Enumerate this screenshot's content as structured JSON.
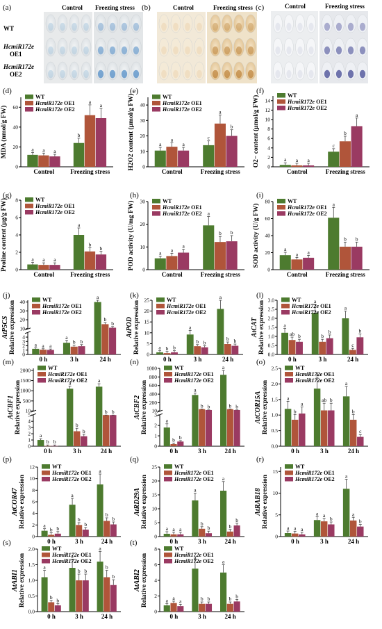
{
  "colors": {
    "wt": "#4d7b2f",
    "oe1": "#b0553a",
    "oe2": "#9a3a62",
    "axis": "#000000",
    "err": "#444444"
  },
  "legend": [
    "WT",
    "HcmiR172e OE1",
    "HcmiR172e OE2"
  ],
  "legend_ital": [
    "HcmiR172e"
  ],
  "photo_panels": [
    {
      "label": "(a)",
      "headers": [
        "Control",
        "Freezing stress"
      ],
      "rows": [
        "WT",
        "HcmiR172e",
        "OE1",
        "HcmiR172e",
        "OE2"
      ]
    },
    {
      "label": "(b)",
      "headers": [
        "Control",
        "Freezing stress"
      ]
    },
    {
      "label": "(c)",
      "headers": [
        "Control",
        "Freezing stress"
      ]
    }
  ],
  "chart_data": [
    {
      "label": "(d)",
      "type": "bar",
      "ylabel": "MDA (nmol/g FW)",
      "categories": [
        "Control",
        "Freezing stress"
      ],
      "ylim": [
        0,
        70
      ],
      "yticks": [
        "0",
        "20",
        "40",
        "60"
      ],
      "series": [
        {
          "name": "WT",
          "values": [
            12,
            24
          ]
        },
        {
          "name": "HcmiR172e OE1",
          "values": [
            11.5,
            52
          ]
        },
        {
          "name": "HcmiR172e OE2",
          "values": [
            10.5,
            49
          ]
        }
      ],
      "letters": [
        [
          "a",
          "a",
          "a"
        ],
        [
          "b",
          "a",
          "a"
        ]
      ]
    },
    {
      "label": "(e)",
      "type": "bar",
      "ylabel": "H2O2 content (μmol/g FW)",
      "categories": [
        "Control",
        "Freezing stress"
      ],
      "ylim": [
        0,
        45
      ],
      "yticks": [
        "0",
        "10",
        "20",
        "30",
        "40"
      ],
      "series": [
        {
          "name": "WT",
          "values": [
            10.5,
            14
          ]
        },
        {
          "name": "HcmiR172e OE1",
          "values": [
            13,
            28
          ]
        },
        {
          "name": "HcmiR172e OE2",
          "values": [
            10.5,
            20
          ]
        }
      ],
      "letters": [
        [
          "a",
          "a",
          "a"
        ],
        [
          "c",
          "a",
          "b"
        ]
      ]
    },
    {
      "label": "(f)",
      "type": "bar",
      "ylabel": "O2− content (μmol/g FW)",
      "categories": [
        "Control",
        "Freezing stress"
      ],
      "ylim": [
        0,
        15
      ],
      "yticks": [
        "0",
        "2",
        "4",
        "6",
        "8",
        "10",
        "12",
        "14"
      ],
      "series": [
        {
          "name": "WT",
          "values": [
            0.4,
            3.2
          ]
        },
        {
          "name": "HcmiR172e OE1",
          "values": [
            0.3,
            5.4
          ]
        },
        {
          "name": "HcmiR172e OE2",
          "values": [
            0.3,
            8.6
          ]
        }
      ],
      "letters": [
        [
          "a",
          "a",
          "a"
        ],
        [
          "c",
          "b",
          "a"
        ]
      ]
    },
    {
      "label": "(g)",
      "type": "bar",
      "ylabel": "Proline content (μg/g FW)",
      "categories": [
        "Control",
        "Freezing stress"
      ],
      "ylim": [
        0,
        8
      ],
      "yticks": [
        "0",
        "2",
        "4",
        "6",
        "8"
      ],
      "series": [
        {
          "name": "WT",
          "values": [
            0.6,
            4
          ]
        },
        {
          "name": "HcmiR172e OE1",
          "values": [
            0.55,
            2.1
          ]
        },
        {
          "name": "HcmiR172e OE2",
          "values": [
            0.55,
            1.75
          ]
        }
      ],
      "letters": [
        [
          "a",
          "a",
          "a"
        ],
        [
          "a",
          "b",
          "b"
        ]
      ]
    },
    {
      "label": "(h)",
      "type": "bar",
      "ylabel": "POD activity (U/mg FW)",
      "categories": [
        "Control",
        "Freezing stress"
      ],
      "ylim": [
        0,
        30
      ],
      "yticks": [
        "0",
        "10",
        "20",
        "30"
      ],
      "series": [
        {
          "name": "WT",
          "values": [
            5,
            19.5
          ]
        },
        {
          "name": "HcmiR172e OE1",
          "values": [
            6,
            12.2
          ]
        },
        {
          "name": "HcmiR172e OE2",
          "values": [
            7.5,
            12.5
          ]
        }
      ],
      "letters": [
        [
          "a",
          "a",
          "a"
        ],
        [
          "a",
          "b",
          "b"
        ]
      ]
    },
    {
      "label": "(i)",
      "type": "bar",
      "ylabel": "SOD activity (U/g FW)",
      "categories": [
        "Control",
        "Freezing stress"
      ],
      "ylim": [
        0,
        80
      ],
      "yticks": [
        "0",
        "20",
        "40",
        "60",
        "80"
      ],
      "series": [
        {
          "name": "WT",
          "values": [
            17,
            61
          ]
        },
        {
          "name": "HcmiR172e OE1",
          "values": [
            12,
            27
          ]
        },
        {
          "name": "HcmiR172e OE2",
          "values": [
            14,
            27
          ]
        }
      ],
      "letters": [
        [
          "a",
          "a",
          "a"
        ],
        [
          "a",
          "b",
          "b"
        ]
      ]
    },
    {
      "label": "(j)",
      "type": "bar",
      "ylabel": "Relative expression",
      "gene": "AtP5CS",
      "categories": [
        "0 h",
        "3 h",
        "24 h"
      ],
      "broken": true,
      "lower_max": 5,
      "lower_ticks": [
        "0",
        "1",
        "2",
        "3",
        "4"
      ],
      "upper_min": 10,
      "upper_max": 42,
      "upper_ticks": [
        "10",
        "20",
        "30",
        "40"
      ],
      "series": [
        {
          "name": "WT",
          "values": [
            1.3,
            2.7,
            40
          ]
        },
        {
          "name": "HcmiR172e OE1",
          "values": [
            1.1,
            1.8,
            15
          ]
        },
        {
          "name": "HcmiR172e OE2",
          "values": [
            1.05,
            1.9,
            11
          ]
        }
      ],
      "letters": [
        [
          "a",
          "a",
          "a"
        ],
        [
          "a",
          "b",
          "b"
        ],
        [
          "a",
          "b",
          "b"
        ]
      ]
    },
    {
      "label": "(k)",
      "type": "bar",
      "ylabel": "Relative expression",
      "gene": "AtPOD",
      "categories": [
        "0 h",
        "3 h",
        "24 h"
      ],
      "ylim": [
        0,
        25
      ],
      "yticks": [
        "0",
        "5",
        "10",
        "15",
        "20",
        "25"
      ],
      "series": [
        {
          "name": "WT",
          "values": [
            1,
            9.2,
            21
          ]
        },
        {
          "name": "HcmiR172e OE1",
          "values": [
            0.6,
            3.8,
            4.8
          ]
        },
        {
          "name": "HcmiR172e OE2",
          "values": [
            1,
            3.3,
            4
          ]
        }
      ],
      "letters": [
        [
          "a",
          "b",
          "b"
        ],
        [
          "a",
          "b",
          "b"
        ],
        [
          "a",
          "b",
          "b"
        ]
      ]
    },
    {
      "label": "(l)",
      "type": "bar",
      "ylabel": "Relative expression",
      "gene": "AtCAT",
      "categories": [
        "0 h",
        "3 h",
        "24 h"
      ],
      "ylim": [
        0,
        3
      ],
      "yticks": [
        "0.0",
        "0.5",
        "1.0",
        "1.5",
        "2.0",
        "2.5",
        "3.0"
      ],
      "series": [
        {
          "name": "WT",
          "values": [
            1.2,
            2.3,
            2
          ]
        },
        {
          "name": "HcmiR172e OE1",
          "values": [
            0.8,
            0.7,
            0.25
          ]
        },
        {
          "name": "HcmiR172e OE2",
          "values": [
            0.7,
            0.9,
            0.95
          ]
        }
      ],
      "letters": [
        [
          "a",
          "ab",
          "b"
        ],
        [
          "a",
          "b",
          "b"
        ],
        [
          "a",
          "c",
          "b"
        ]
      ]
    },
    {
      "label": "(m)",
      "type": "bar",
      "ylabel": "Relative expression",
      "gene": "AtCBF1",
      "categories": [
        "0 h",
        "3 h",
        "24 h"
      ],
      "broken": true,
      "lower_max": 5,
      "lower_ticks": [
        "0",
        "1",
        "2",
        "3",
        "4",
        "5"
      ],
      "upper_min": 10,
      "upper_max": 2100,
      "upper_ticks": [
        "10",
        "500",
        "1000",
        "1500",
        "2000"
      ],
      "series": [
        {
          "name": "WT",
          "values": [
            1,
            1100,
            1200
          ]
        },
        {
          "name": "HcmiR172e OE1",
          "values": [
            0.05,
            2.4,
            5
          ]
        },
        {
          "name": "HcmiR172e OE2",
          "values": [
            0.05,
            1.6,
            5
          ]
        }
      ],
      "letters": [
        [
          "a",
          "b",
          "b"
        ],
        [
          "a",
          "b",
          "b"
        ],
        [
          "a",
          "b",
          "b"
        ]
      ]
    },
    {
      "label": "(n)",
      "type": "bar",
      "ylabel": "Relative expression",
      "gene": "AtCBF2",
      "categories": [
        "0 h",
        "3 h",
        "24 h"
      ],
      "broken": true,
      "lower_max": 3,
      "lower_ticks": [
        "0",
        "1",
        "2",
        "3"
      ],
      "upper_min": 10,
      "upper_max": 1000,
      "upper_ticks": [
        "10",
        "200",
        "400",
        "600",
        "800",
        "1000"
      ],
      "series": [
        {
          "name": "WT",
          "values": [
            1.8,
            380,
            850
          ]
        },
        {
          "name": "HcmiR172e OE1",
          "values": [
            0.2,
            50,
            50
          ]
        },
        {
          "name": "HcmiR172e OE2",
          "values": [
            0.45,
            30,
            30
          ]
        }
      ],
      "letters": [
        [
          "a",
          "b",
          "b"
        ],
        [
          "a",
          "b",
          "b"
        ],
        [
          "a",
          "b",
          "b"
        ]
      ]
    },
    {
      "label": "(o)",
      "type": "bar",
      "ylabel": "Relative expression",
      "gene": "AtCOR15A",
      "categories": [
        "0 h",
        "3 h",
        "24 h"
      ],
      "ylim": [
        0,
        2.5
      ],
      "yticks": [
        "0.0",
        "0.5",
        "1.0",
        "1.5",
        "2.0",
        "2.5"
      ],
      "series": [
        {
          "name": "WT",
          "values": [
            1.2,
            1.85,
            1.6
          ]
        },
        {
          "name": "HcmiR172e OE1",
          "values": [
            0.85,
            1.15,
            0.85
          ]
        },
        {
          "name": "HcmiR172e OE2",
          "values": [
            1.05,
            1.15,
            0.3
          ]
        }
      ],
      "letters": [
        [
          "a",
          "b",
          "a"
        ],
        [
          "a",
          "ab",
          "b"
        ],
        [
          "a",
          "b",
          "c"
        ]
      ]
    },
    {
      "label": "(p)",
      "type": "bar",
      "ylabel": "Relative expression",
      "gene": "AtCOR47",
      "categories": [
        "0 h",
        "3 h",
        "24 h"
      ],
      "ylim": [
        0,
        12
      ],
      "yticks": [
        "0",
        "2",
        "4",
        "6",
        "8",
        "10",
        "12"
      ],
      "series": [
        {
          "name": "WT",
          "values": [
            1,
            5.5,
            9
          ]
        },
        {
          "name": "HcmiR172e OE1",
          "values": [
            0.3,
            2,
            2.7
          ]
        },
        {
          "name": "HcmiR172e OE2",
          "values": [
            0.5,
            1.2,
            2.1
          ]
        }
      ],
      "letters": [
        [
          "a",
          "b",
          "b"
        ],
        [
          "a",
          "b",
          "b"
        ],
        [
          "a",
          "b",
          "b"
        ]
      ]
    },
    {
      "label": "(q)",
      "type": "bar",
      "ylabel": "Relative expression",
      "gene": "AtRD29A",
      "categories": [
        "0 h",
        "3 h",
        "24 h"
      ],
      "ylim": [
        0,
        25
      ],
      "yticks": [
        "0",
        "5",
        "10",
        "15",
        "20",
        "25"
      ],
      "series": [
        {
          "name": "WT",
          "values": [
            1,
            13,
            16.5
          ]
        },
        {
          "name": "HcmiR172e OE1",
          "values": [
            0.8,
            2.8,
            1.8
          ]
        },
        {
          "name": "HcmiR172e OE2",
          "values": [
            0.8,
            1.2,
            4
          ]
        }
      ],
      "letters": [
        [
          "a",
          "a",
          "a"
        ],
        [
          "a",
          "b",
          "b"
        ],
        [
          "a",
          "b",
          "b"
        ]
      ]
    },
    {
      "label": "(r)",
      "type": "bar",
      "ylabel": "Relative expression",
      "gene": "AtRAB18",
      "categories": [
        "0 h",
        "3 h",
        "24 h"
      ],
      "ylim": [
        0,
        16
      ],
      "yticks": [
        "0",
        "5",
        "10",
        "15"
      ],
      "series": [
        {
          "name": "WT",
          "values": [
            0.8,
            3.8,
            11
          ]
        },
        {
          "name": "HcmiR172e OE1",
          "values": [
            0.7,
            3.5,
            3.7
          ]
        },
        {
          "name": "HcmiR172e OE2",
          "values": [
            0.5,
            2.8,
            2.3
          ]
        }
      ],
      "letters": [
        [
          "a",
          "a",
          "a"
        ],
        [
          "a",
          "a",
          "b"
        ],
        [
          "a",
          "a",
          "b"
        ]
      ]
    },
    {
      "label": "(s)",
      "type": "bar",
      "ylabel": "Relative expression",
      "gene": "AtABI1",
      "categories": [
        "0 h",
        "3 h",
        "24 h"
      ],
      "ylim": [
        0,
        2
      ],
      "yticks": [
        "0.0",
        "0.5",
        "1.0",
        "1.5",
        "2.0"
      ],
      "series": [
        {
          "name": "WT",
          "values": [
            1.1,
            1.4,
            1.6
          ]
        },
        {
          "name": "HcmiR172e OE1",
          "values": [
            0.3,
            1,
            1.1
          ]
        },
        {
          "name": "HcmiR172e OE2",
          "values": [
            0.2,
            1,
            0.85
          ]
        }
      ],
      "letters": [
        [
          "a",
          "b",
          "b"
        ],
        [
          "a",
          "b",
          "b"
        ],
        [
          "a",
          "b",
          "b"
        ]
      ]
    },
    {
      "label": "(t)",
      "type": "bar",
      "ylabel": "Relative expression",
      "gene": "AtABI2",
      "categories": [
        "0 h",
        "3 h",
        "24 h"
      ],
      "ylim": [
        0,
        8
      ],
      "yticks": [
        "0",
        "2",
        "4",
        "6",
        "8"
      ],
      "series": [
        {
          "name": "WT",
          "values": [
            0.8,
            5.5,
            5
          ]
        },
        {
          "name": "HcmiR172e OE1",
          "values": [
            1.1,
            1,
            1
          ]
        },
        {
          "name": "HcmiR172e OE2",
          "values": [
            0.7,
            1,
            1.3
          ]
        }
      ],
      "letters": [
        [
          "a",
          "a",
          "a"
        ],
        [
          "a",
          "b",
          "b"
        ],
        [
          "a",
          "b",
          "b"
        ]
      ]
    }
  ]
}
